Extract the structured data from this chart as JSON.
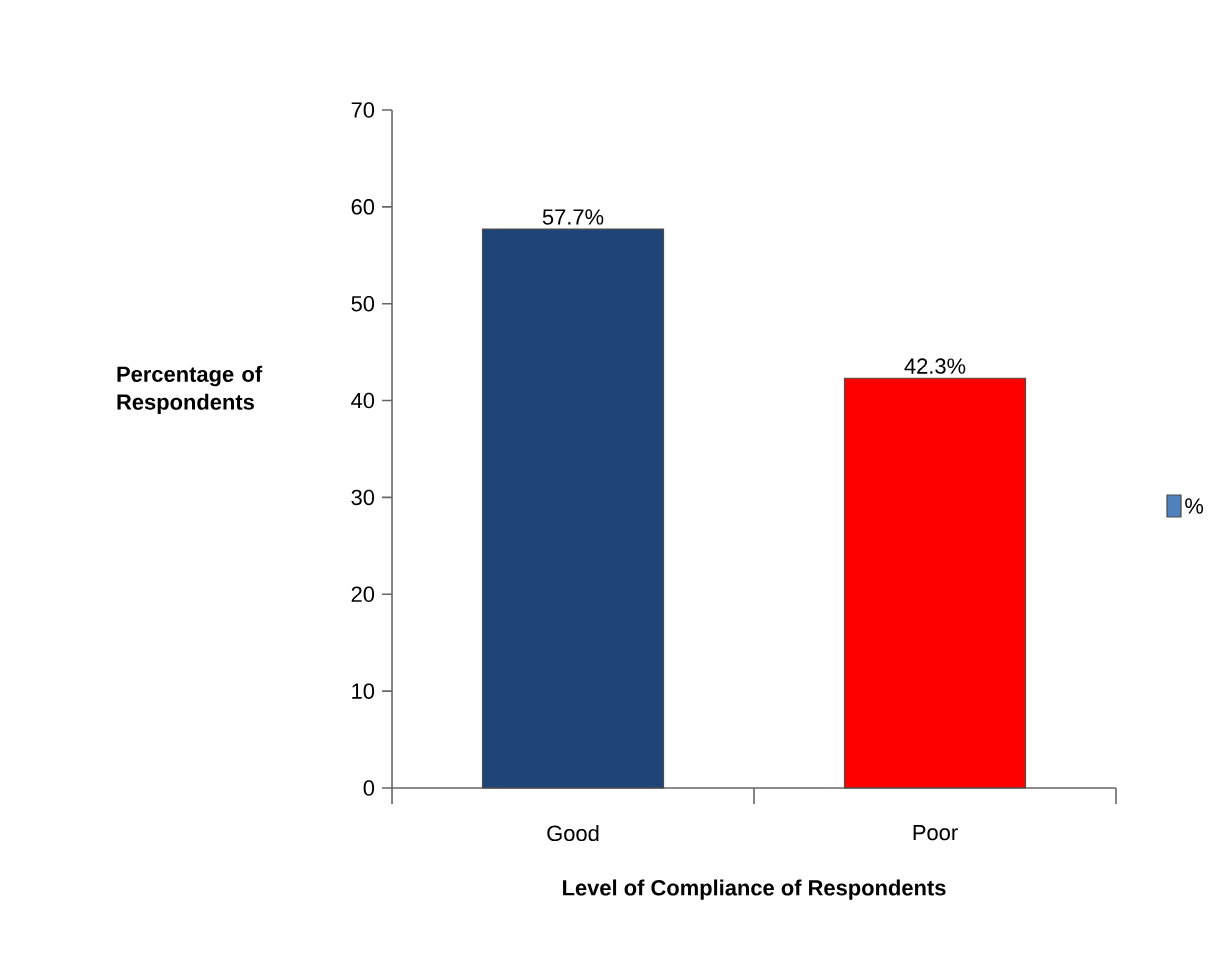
{
  "chart_data": {
    "type": "bar",
    "xlabel": "Level of Compliance of Respondents",
    "ylabel": "Percentage of Respondents",
    "categories": [
      "Good",
      "Poor"
    ],
    "series": [
      {
        "name": "%",
        "color": "#4f81bd",
        "colors": [
          "#1f4477",
          "#ff0000"
        ],
        "values": [
          57.7,
          42.3
        ],
        "value_labels": [
          "57.7%",
          "42.3%"
        ]
      }
    ],
    "ylim": [
      0,
      70
    ],
    "yticks": [
      0,
      10,
      20,
      30,
      40,
      50,
      60,
      70
    ],
    "legend": "right"
  }
}
